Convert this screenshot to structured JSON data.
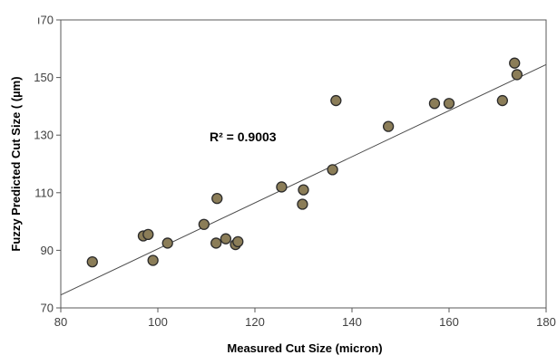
{
  "chart_data": {
    "type": "scatter",
    "xlabel": "Measured Cut Size (micron)",
    "ylabel": "Fuzzy Predicted Cut Size ( (µm)",
    "annotation": "R² = 0.9003",
    "xlim": [
      80,
      180
    ],
    "ylim": [
      70,
      170
    ],
    "xticks": [
      80,
      100,
      120,
      140,
      160,
      180
    ],
    "yticks": [
      70,
      90,
      110,
      130,
      150,
      170
    ],
    "xtick_labels": [
      "80",
      "100",
      "120",
      "140",
      "160",
      "180"
    ],
    "ytick_labels": [
      "70",
      "90",
      "110",
      "130",
      "150",
      "ı70"
    ],
    "grid": false,
    "marker_color": "#8b7d58",
    "marker_edge": "#2b2b2b",
    "points": [
      {
        "x": 86.5,
        "y": 86
      },
      {
        "x": 97,
        "y": 95
      },
      {
        "x": 98,
        "y": 95.5
      },
      {
        "x": 99,
        "y": 86.5
      },
      {
        "x": 102,
        "y": 92.5
      },
      {
        "x": 109.5,
        "y": 99
      },
      {
        "x": 112,
        "y": 92.5
      },
      {
        "x": 112.2,
        "y": 108
      },
      {
        "x": 114,
        "y": 94
      },
      {
        "x": 116,
        "y": 92
      },
      {
        "x": 116.5,
        "y": 93
      },
      {
        "x": 125.5,
        "y": 112
      },
      {
        "x": 129.8,
        "y": 106
      },
      {
        "x": 130,
        "y": 111
      },
      {
        "x": 136,
        "y": 118
      },
      {
        "x": 136.7,
        "y": 142
      },
      {
        "x": 147.5,
        "y": 133
      },
      {
        "x": 157,
        "y": 141
      },
      {
        "x": 160,
        "y": 141
      },
      {
        "x": 171,
        "y": 142
      },
      {
        "x": 173.5,
        "y": 155
      },
      {
        "x": 174,
        "y": 151
      }
    ],
    "trendline": {
      "x": [
        80,
        180
      ],
      "y": [
        74.5,
        154.5
      ]
    }
  }
}
